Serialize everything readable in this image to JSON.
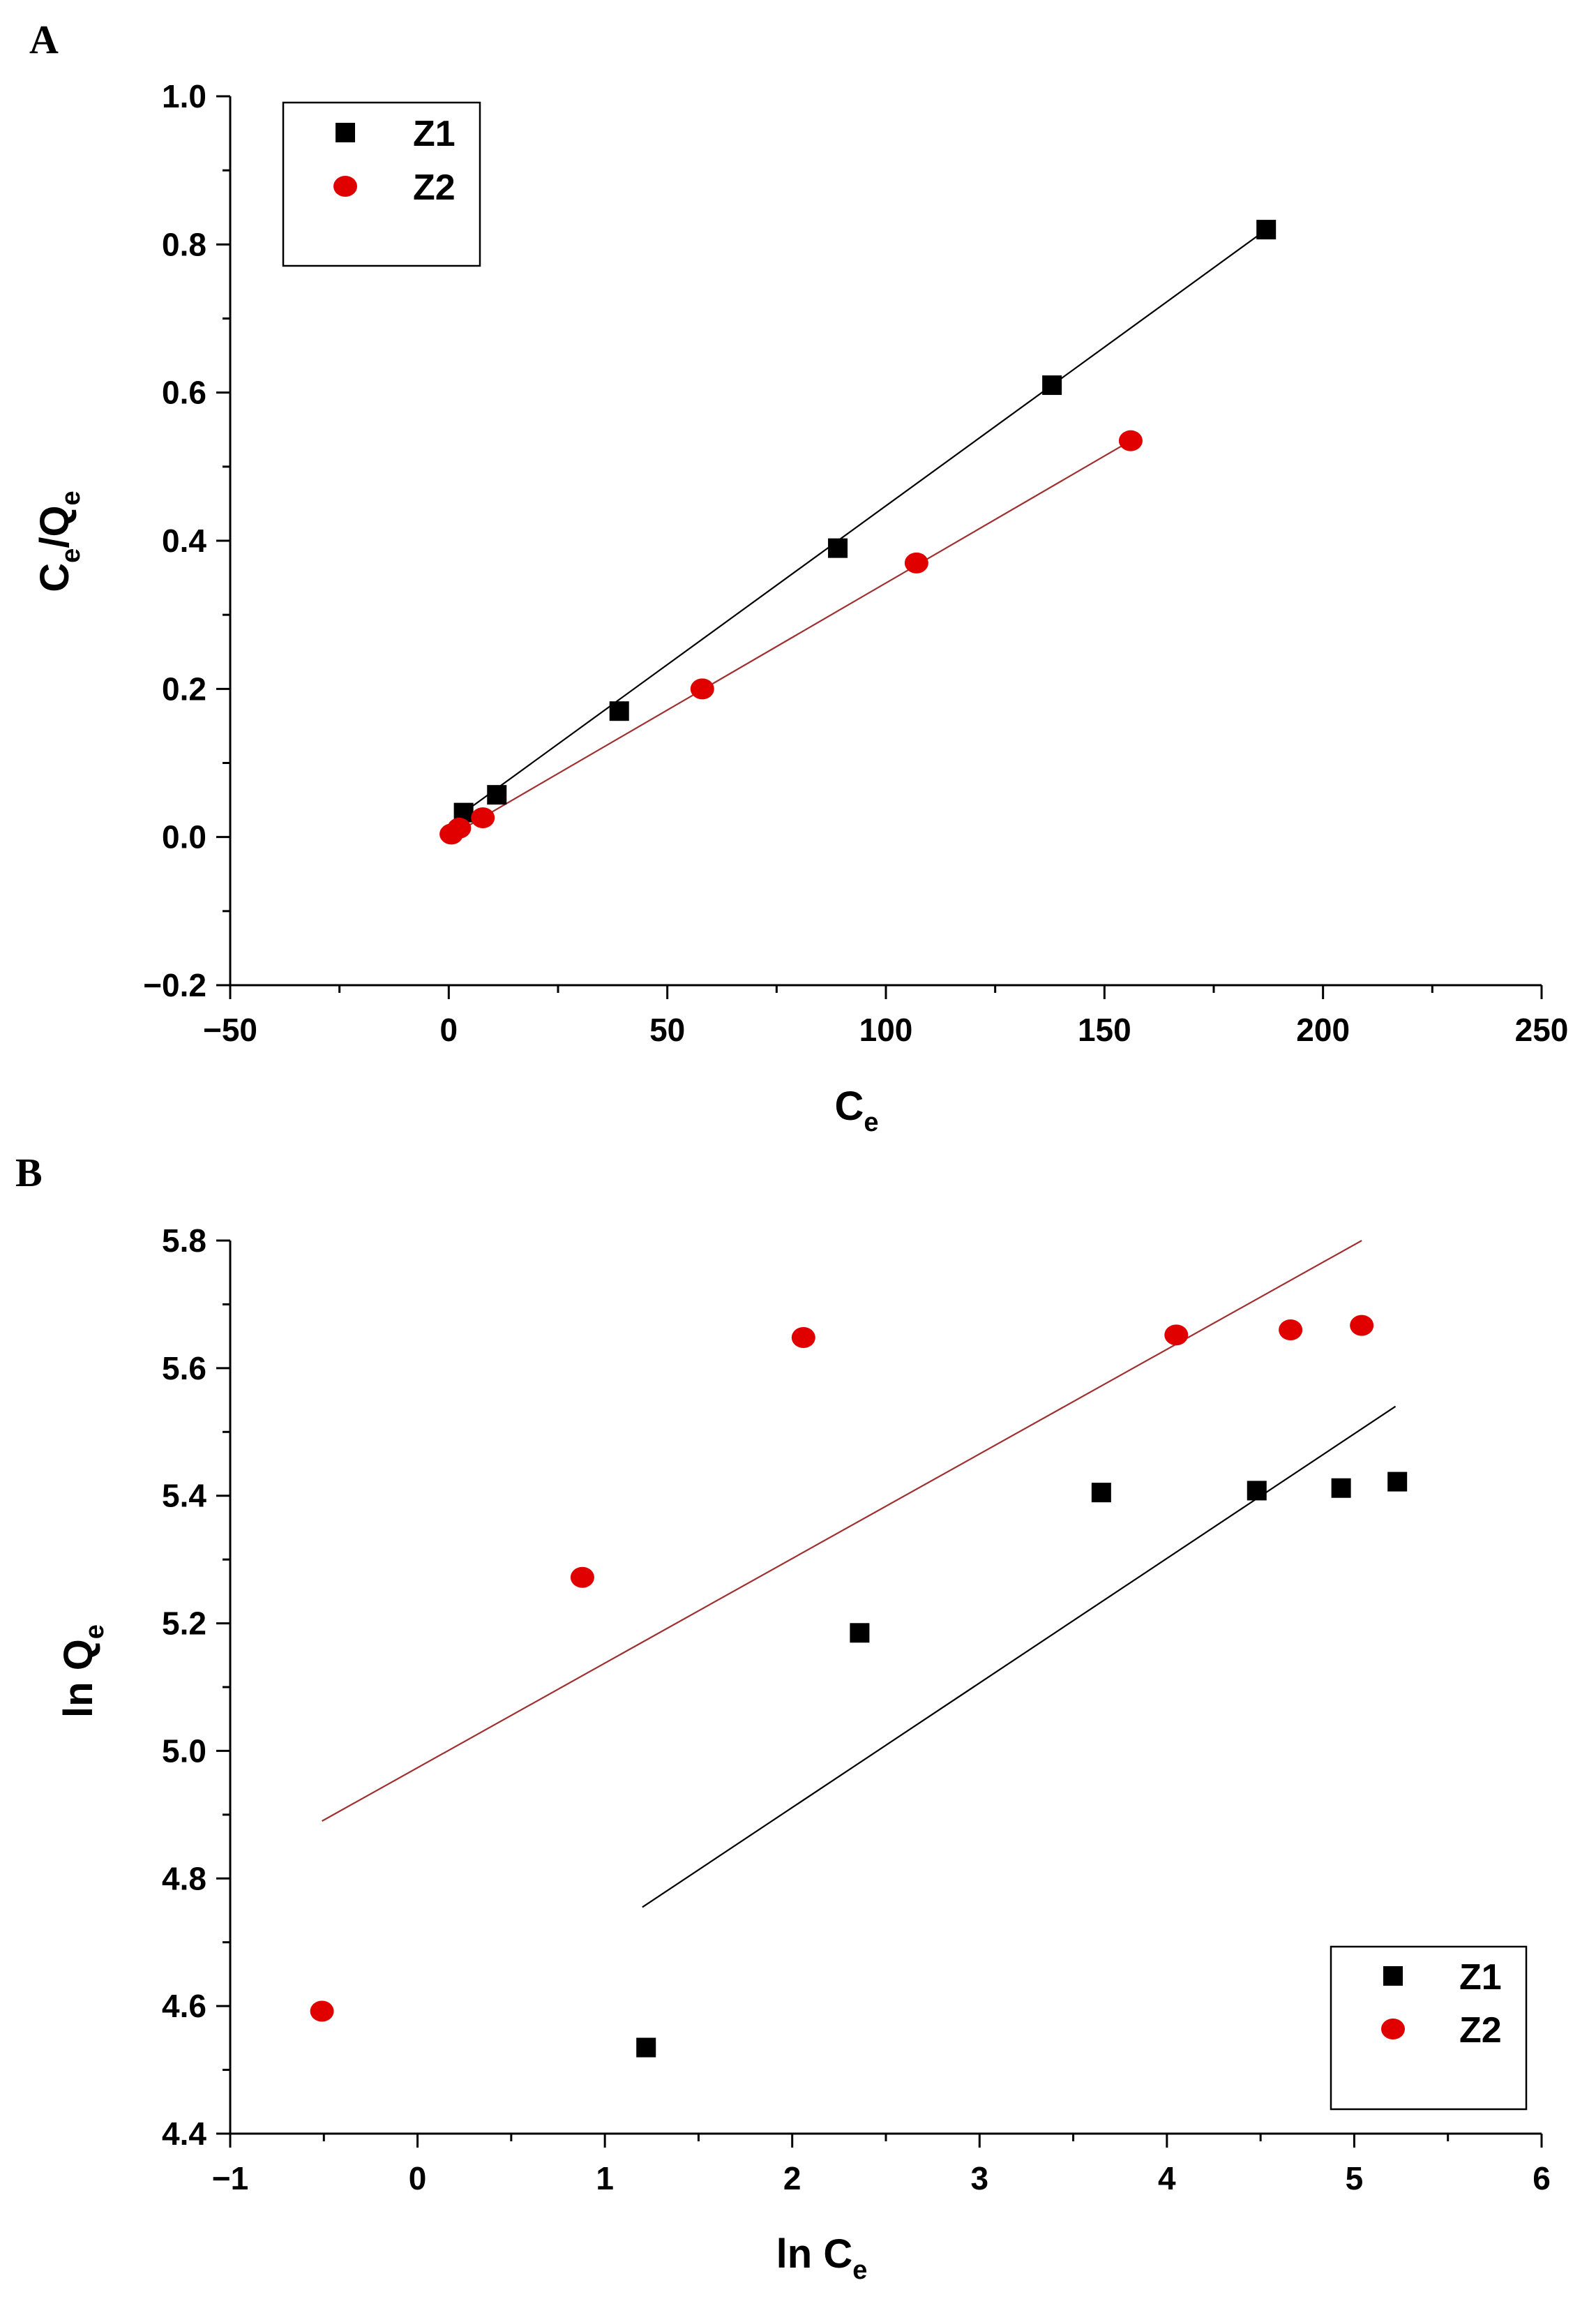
{
  "chart_data": [
    {
      "type": "scatter",
      "panel_label": "A",
      "xlabel": "C",
      "xlabel_sub": "e",
      "ylabel_parts": [
        "C",
        "e",
        "/Q",
        "e"
      ],
      "xlim": [
        -50,
        250
      ],
      "ylim": [
        -0.2,
        1.0
      ],
      "xticks": [
        -50,
        0,
        50,
        100,
        150,
        200,
        250
      ],
      "xtick_labels": [
        "−50",
        "0",
        "50",
        "100",
        "150",
        "200",
        "250"
      ],
      "yticks": [
        -0.2,
        0.0,
        0.2,
        0.4,
        0.6,
        0.8,
        1.0
      ],
      "ytick_labels": [
        "−0.2",
        "0.0",
        "0.2",
        "0.4",
        "0.6",
        "0.8",
        "1.0"
      ],
      "legend_position": "top-left",
      "series": [
        {
          "name": "Z1",
          "marker": "square",
          "color": "#000000",
          "line_color": "#000000",
          "x": [
            3.4,
            11,
            39,
            89,
            138,
            187
          ],
          "y": [
            0.033,
            0.057,
            0.17,
            0.39,
            0.61,
            0.82
          ],
          "fit_line": [
            [
              3.4,
              0.033
            ],
            [
              187,
              0.82
            ]
          ]
        },
        {
          "name": "Z2",
          "marker": "circle",
          "color": "#e00000",
          "line_color": "#a03030",
          "x": [
            0.6,
            2.4,
            7.8,
            58,
            107,
            156
          ],
          "y": [
            0.004,
            0.012,
            0.026,
            0.2,
            0.37,
            0.535
          ],
          "fit_line": [
            [
              0.6,
              0.002
            ],
            [
              156,
              0.535
            ]
          ]
        }
      ]
    },
    {
      "type": "scatter",
      "panel_label": "B",
      "xlabel": "ln C",
      "xlabel_sub": "e",
      "ylabel_parts": [
        "ln Q",
        "e"
      ],
      "xlim": [
        -1,
        6
      ],
      "ylim": [
        4.4,
        5.8
      ],
      "xticks": [
        -1,
        0,
        1,
        2,
        3,
        4,
        5,
        6
      ],
      "xtick_labels": [
        "−1",
        "0",
        "1",
        "2",
        "3",
        "4",
        "5",
        "6"
      ],
      "yticks": [
        4.4,
        4.6,
        4.8,
        5.0,
        5.2,
        5.4,
        5.6,
        5.8
      ],
      "ytick_labels": [
        "4.4",
        "4.6",
        "4.8",
        "5.0",
        "5.2",
        "5.4",
        "5.6",
        "5.8"
      ],
      "legend_position": "bottom-right",
      "series": [
        {
          "name": "Z1",
          "marker": "square",
          "color": "#000000",
          "line_color": "#000000",
          "x": [
            1.22,
            2.36,
            3.65,
            4.48,
            4.93,
            5.23
          ],
          "y": [
            4.535,
            5.185,
            5.405,
            5.408,
            5.412,
            5.422
          ],
          "fit_line": [
            [
              1.2,
              4.755
            ],
            [
              5.22,
              5.54
            ]
          ]
        },
        {
          "name": "Z2",
          "marker": "circle",
          "color": "#e00000",
          "line_color": "#a03030",
          "x": [
            -0.51,
            0.88,
            2.06,
            4.05,
            4.66,
            5.04
          ],
          "y": [
            4.592,
            5.272,
            5.648,
            5.652,
            5.66,
            5.667
          ],
          "fit_line": [
            [
              -0.51,
              4.89
            ],
            [
              5.04,
              5.8
            ]
          ]
        }
      ]
    }
  ]
}
